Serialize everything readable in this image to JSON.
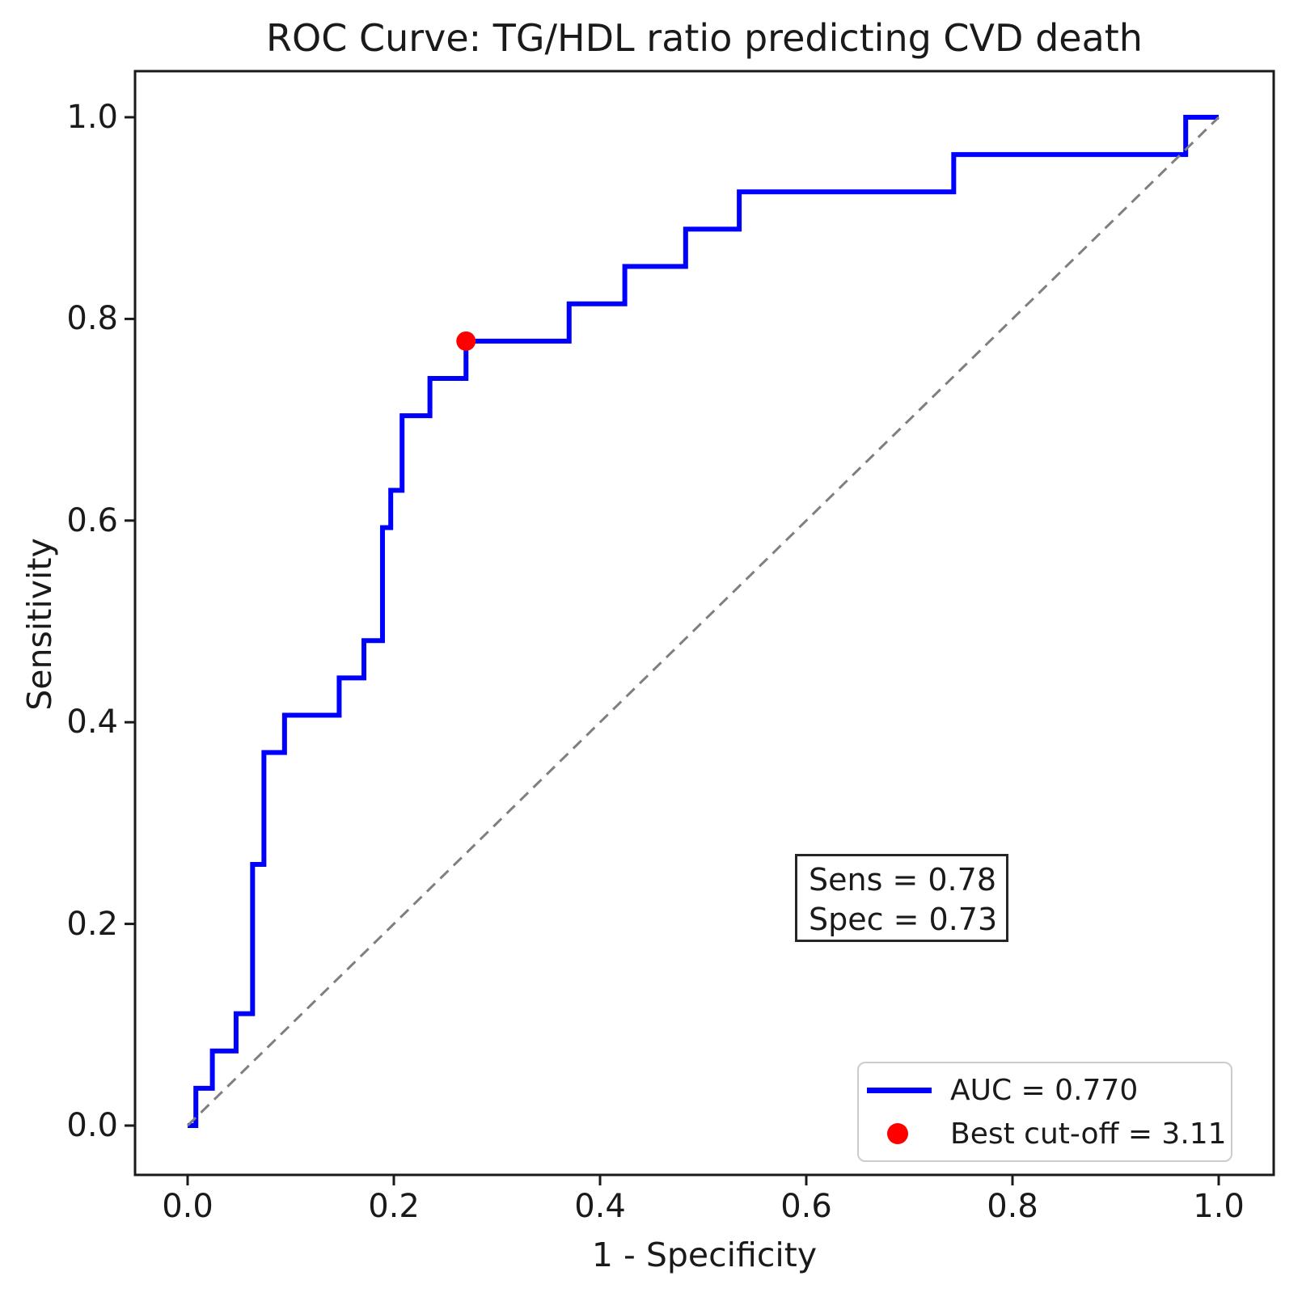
{
  "chart_data": {
    "type": "line",
    "title": "ROC Curve: TG/HDL ratio predicting CVD death",
    "xlabel": "1 - Specificity",
    "ylabel": "Sensitivity",
    "xlim": [
      -0.05,
      1.05
    ],
    "ylim": [
      -0.05,
      1.05
    ],
    "grid": false,
    "x_tick_values": [
      0.0,
      0.2,
      0.4,
      0.6,
      0.8,
      1.0
    ],
    "x_tick_labels": [
      "0.0",
      "0.2",
      "0.4",
      "0.6",
      "0.8",
      "1.0"
    ],
    "y_tick_values": [
      0.0,
      0.2,
      0.4,
      0.6,
      0.8,
      1.0
    ],
    "y_tick_labels": [
      "0.0",
      "0.2",
      "0.4",
      "0.6",
      "0.8",
      "1.0"
    ],
    "series": [
      {
        "name": "ROC curve",
        "type": "step-line",
        "color": "#0000ff",
        "width": 6,
        "points": [
          [
            0.0,
            0.0
          ],
          [
            0.008,
            0.0
          ],
          [
            0.008,
            0.037
          ],
          [
            0.024,
            0.037
          ],
          [
            0.024,
            0.074
          ],
          [
            0.047,
            0.074
          ],
          [
            0.047,
            0.111
          ],
          [
            0.063,
            0.111
          ],
          [
            0.063,
            0.259
          ],
          [
            0.074,
            0.259
          ],
          [
            0.074,
            0.37
          ],
          [
            0.094,
            0.37
          ],
          [
            0.094,
            0.407
          ],
          [
            0.147,
            0.407
          ],
          [
            0.147,
            0.444
          ],
          [
            0.171,
            0.444
          ],
          [
            0.171,
            0.481
          ],
          [
            0.189,
            0.481
          ],
          [
            0.189,
            0.593
          ],
          [
            0.197,
            0.593
          ],
          [
            0.197,
            0.63
          ],
          [
            0.208,
            0.63
          ],
          [
            0.208,
            0.704
          ],
          [
            0.235,
            0.704
          ],
          [
            0.235,
            0.741
          ],
          [
            0.27,
            0.741
          ],
          [
            0.27,
            0.778
          ],
          [
            0.37,
            0.778
          ],
          [
            0.37,
            0.815
          ],
          [
            0.424,
            0.815
          ],
          [
            0.424,
            0.852
          ],
          [
            0.483,
            0.852
          ],
          [
            0.483,
            0.889
          ],
          [
            0.535,
            0.889
          ],
          [
            0.535,
            0.926
          ],
          [
            0.743,
            0.926
          ],
          [
            0.743,
            0.963
          ],
          [
            0.968,
            0.963
          ],
          [
            0.968,
            1.0
          ],
          [
            1.0,
            1.0
          ]
        ]
      },
      {
        "name": "chance diagonal",
        "type": "dashed-line",
        "color": "#7f7f7f",
        "width": 3,
        "points": [
          [
            0.0,
            0.0
          ],
          [
            1.0,
            1.0
          ]
        ]
      }
    ],
    "auc": "0.770",
    "best_cutoff": {
      "x": 0.27,
      "y": 0.778,
      "value": 3.11,
      "color": "#ff0000",
      "radius": 12
    },
    "annotation_box": {
      "sens": 0.78,
      "spec": 0.73,
      "line1": "Sens = 0.78",
      "line2": "Spec = 0.73"
    },
    "legend": {
      "position": "lower right",
      "items": [
        {
          "marker": "line",
          "color": "#0000ff",
          "label": "AUC = 0.770"
        },
        {
          "marker": "dot",
          "color": "#ff0000",
          "label": "Best cut-off = 3.11"
        }
      ]
    }
  }
}
